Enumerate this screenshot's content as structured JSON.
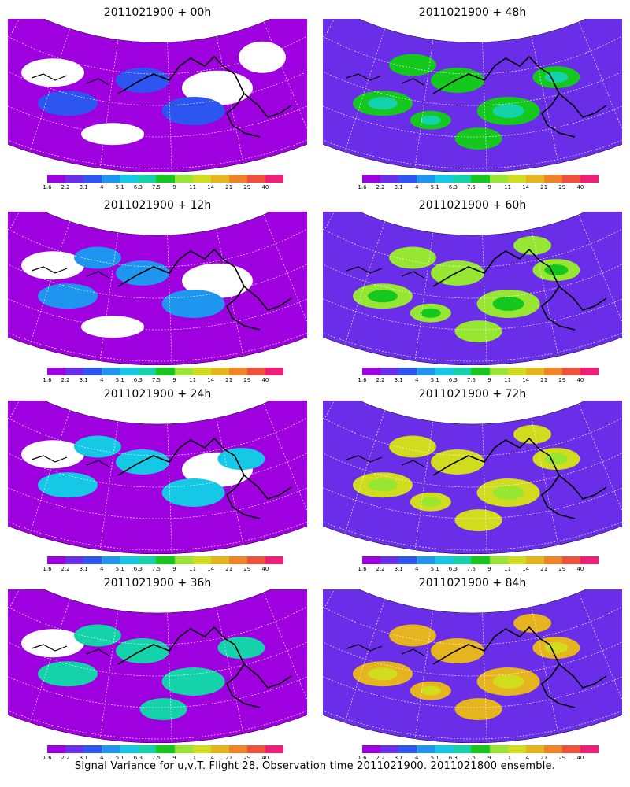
{
  "caption": "Signal Variance for u,v,T. Flight 28. Observation time 2011021900. 2011021800 ensemble.",
  "colorbar": {
    "labels": [
      "1.6",
      "2.2",
      "3.1",
      "4",
      "5.1",
      "6.3",
      "7.5",
      "9",
      "11",
      "14",
      "21",
      "29",
      "40"
    ],
    "colors": [
      "#9e00e0",
      "#6a2ee8",
      "#2d55f0",
      "#1e96f0",
      "#14c8e6",
      "#14d2aa",
      "#14c81e",
      "#96e632",
      "#d2dc1e",
      "#e6b41e",
      "#f08228",
      "#f0503c",
      "#f01e78"
    ]
  },
  "panels": [
    {
      "title": "2011021900 + 00h",
      "level": 0
    },
    {
      "title": "2011021900 + 12h",
      "level": 1
    },
    {
      "title": "2011021900 + 24h",
      "level": 2
    },
    {
      "title": "2011021900 + 36h",
      "level": 3
    },
    {
      "title": "2011021900 + 48h",
      "level": 4
    },
    {
      "title": "2011021900 + 60h",
      "level": 5
    },
    {
      "title": "2011021900 + 72h",
      "level": 6
    },
    {
      "title": "2011021900 + 84h",
      "level": 7
    }
  ]
}
